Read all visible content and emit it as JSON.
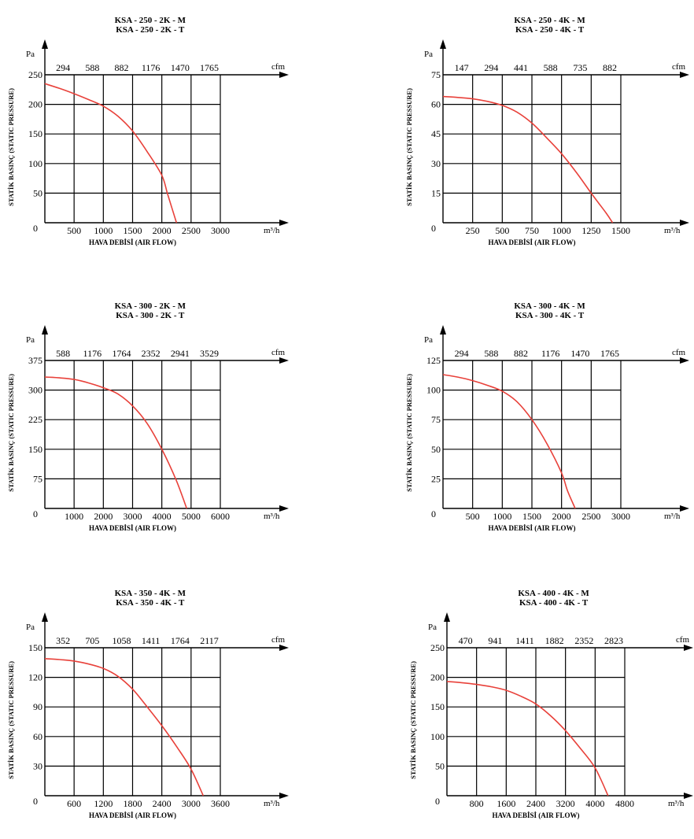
{
  "chart_data": [
    {
      "type": "line",
      "title": [
        "KSA - 250 - 2K - M",
        "KSA - 250 - 2K - T"
      ],
      "ylabel": "STATİK BASINÇ (STATIC PRESSURE)",
      "xlabel": "HAVA DEBİSİ (AIR FLOW)",
      "y_unit": "Pa",
      "x_unit": "m³/h",
      "cfm_unit": "cfm",
      "xlim": [
        0,
        3000
      ],
      "ylim": [
        0,
        250
      ],
      "x_ticks": [
        "500",
        "1000",
        "1500",
        "2000",
        "2500",
        "3000"
      ],
      "y_ticks": [
        "50",
        "100",
        "150",
        "200",
        "250"
      ],
      "cfm_ticks": [
        "294",
        "588",
        "882",
        "1176",
        "1470",
        "1765"
      ],
      "grid": true,
      "x": [
        0,
        250,
        500,
        750,
        1000,
        1250,
        1500,
        1750,
        2000,
        2100,
        2250
      ],
      "y": [
        235,
        227,
        218,
        208,
        197,
        180,
        155,
        120,
        80,
        48,
        0
      ]
    },
    {
      "type": "line",
      "title": [
        "KSA - 250 - 4K - M",
        "KSA - 250 - 4K - T"
      ],
      "ylabel": "STATİK BASINÇ (STATIC PRESSURE)",
      "xlabel": "HAVA DEBİSİ (AIR FLOW)",
      "y_unit": "Pa",
      "x_unit": "m³/h",
      "cfm_unit": "cfm",
      "xlim": [
        0,
        1500
      ],
      "ylim": [
        0,
        75
      ],
      "x_ticks": [
        "250",
        "500",
        "750",
        "1000",
        "1250",
        "1500"
      ],
      "y_ticks": [
        "15",
        "30",
        "45",
        "60",
        "75"
      ],
      "cfm_ticks": [
        "147",
        "294",
        "441",
        "588",
        "735",
        "882"
      ],
      "grid": true,
      "x": [
        0,
        125,
        250,
        375,
        500,
        625,
        750,
        875,
        1000,
        1125,
        1250,
        1375,
        1430
      ],
      "y": [
        64,
        63.5,
        62.8,
        61.5,
        59.5,
        56,
        50.5,
        43,
        35,
        25.5,
        15,
        5,
        0
      ]
    },
    {
      "type": "line",
      "title": [
        "KSA - 300 - 2K - M",
        "KSA - 300 - 2K - T"
      ],
      "ylabel": "STATİK BASINÇ (STATIC PRESSURE)",
      "xlabel": "HAVA DEBİSİ (AIR FLOW)",
      "y_unit": "Pa",
      "x_unit": "m³/h",
      "cfm_unit": "cfm",
      "xlim": [
        0,
        6000
      ],
      "ylim": [
        0,
        375
      ],
      "x_ticks": [
        "1000",
        "2000",
        "3000",
        "4000",
        "5000",
        "6000"
      ],
      "y_ticks": [
        "75",
        "150",
        "225",
        "300",
        "375"
      ],
      "cfm_ticks": [
        "588",
        "1176",
        "1764",
        "2352",
        "2941",
        "3529"
      ],
      "grid": true,
      "x": [
        0,
        500,
        1000,
        1500,
        2000,
        2500,
        3000,
        3500,
        4000,
        4500,
        4850
      ],
      "y": [
        333,
        331,
        327,
        318,
        306,
        290,
        260,
        215,
        150,
        70,
        0
      ]
    },
    {
      "type": "line",
      "title": [
        "KSA - 300 - 4K - M",
        "KSA - 300 - 4K - T"
      ],
      "ylabel": "STATİK BASINÇ (STATIC PRESSURE)",
      "xlabel": "HAVA DEBİSİ (AIR FLOW)",
      "y_unit": "Pa",
      "x_unit": "m³/h",
      "cfm_unit": "cfm",
      "xlim": [
        0,
        3000
      ],
      "ylim": [
        0,
        125
      ],
      "x_ticks": [
        "500",
        "1000",
        "1500",
        "2000",
        "2500",
        "3000"
      ],
      "y_ticks": [
        "25",
        "50",
        "75",
        "100",
        "125"
      ],
      "cfm_ticks": [
        "294",
        "588",
        "882",
        "1176",
        "1470",
        "1765"
      ],
      "grid": true,
      "x": [
        0,
        250,
        500,
        750,
        1000,
        1250,
        1500,
        1750,
        2000,
        2100,
        2230
      ],
      "y": [
        113,
        111,
        108,
        104,
        99,
        90,
        75,
        55,
        30,
        15,
        0
      ]
    },
    {
      "type": "line",
      "title": [
        "KSA - 350 - 4K - M",
        "KSA - 350 - 4K - T"
      ],
      "ylabel": "STATİK BASINÇ (STATIC PRESSURE)",
      "xlabel": "HAVA DEBİSİ (AIR FLOW)",
      "y_unit": "Pa",
      "x_unit": "m³/h",
      "cfm_unit": "cfm",
      "xlim": [
        0,
        3600
      ],
      "ylim": [
        0,
        150
      ],
      "x_ticks": [
        "600",
        "1200",
        "1800",
        "2400",
        "3000",
        "3600"
      ],
      "y_ticks": [
        "30",
        "60",
        "90",
        "120",
        "150"
      ],
      "cfm_ticks": [
        "352",
        "705",
        "1058",
        "1411",
        "1764",
        "2117"
      ],
      "grid": true,
      "x": [
        0,
        300,
        600,
        900,
        1200,
        1500,
        1800,
        2100,
        2400,
        2700,
        3000,
        3250
      ],
      "y": [
        139,
        138,
        136.5,
        133.5,
        129,
        121,
        108,
        90,
        71,
        50,
        27,
        0
      ]
    },
    {
      "type": "line",
      "title": [
        "KSA - 400 - 4K - M",
        "KSA - 400 - 4K - T"
      ],
      "ylabel": "STATİK BASINÇ (STATIC PRESSURE)",
      "xlabel": "HAVA DEBİSİ (AIR FLOW)",
      "y_unit": "Pa",
      "x_unit": "m³/h",
      "cfm_unit": "cfm",
      "xlim": [
        0,
        4800
      ],
      "ylim": [
        0,
        250
      ],
      "x_ticks": [
        "800",
        "1600",
        "2400",
        "3200",
        "4000",
        "4800"
      ],
      "y_ticks": [
        "50",
        "100",
        "150",
        "200",
        "250"
      ],
      "cfm_ticks": [
        "470",
        "941",
        "1411",
        "1882",
        "2352",
        "2823"
      ],
      "grid": true,
      "x": [
        0,
        400,
        800,
        1200,
        1600,
        2000,
        2400,
        2800,
        3200,
        3600,
        4000,
        4350
      ],
      "y": [
        193,
        191,
        188,
        184,
        178,
        168,
        155,
        135,
        110,
        80,
        47,
        0
      ]
    }
  ],
  "colors": {
    "curve": "#e8413a",
    "grid": "#000000",
    "axis": "#000000"
  },
  "zero_label": "0"
}
